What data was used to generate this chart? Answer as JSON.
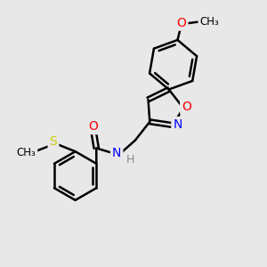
{
  "bg_color": "#e8e8e8",
  "line_color": "#000000",
  "bond_width": 1.8,
  "font_size": 10,
  "atom_colors": {
    "O": "#ff0000",
    "N": "#0000ff",
    "S": "#cccc00",
    "H": "#888888",
    "C": "#000000"
  },
  "figsize": [
    3.0,
    3.0
  ],
  "dpi": 100
}
